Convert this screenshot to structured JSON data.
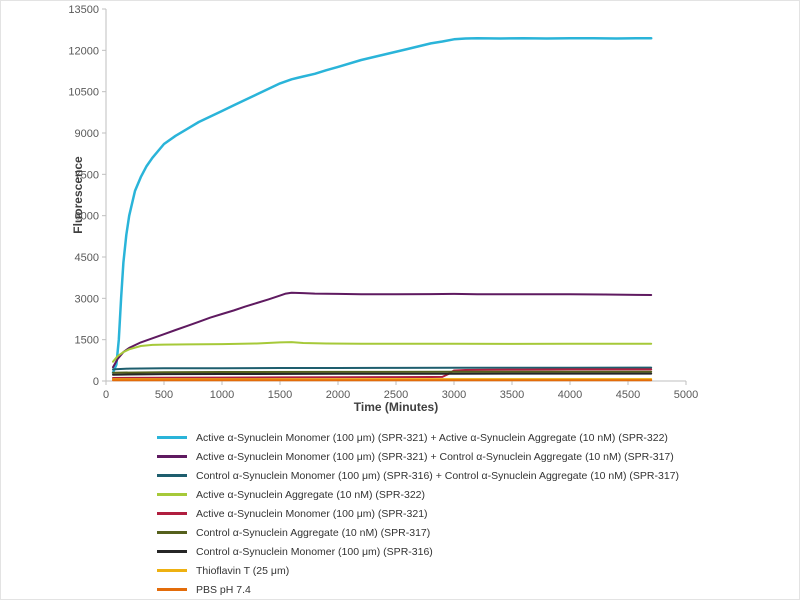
{
  "chart_data": {
    "type": "line",
    "title": "",
    "xlabel": "Time (Minutes)",
    "ylabel": "Fluorescence",
    "xlim": [
      0,
      5000
    ],
    "ylim": [
      0,
      13500
    ],
    "x_ticks": [
      0,
      500,
      1000,
      1500,
      2000,
      2500,
      3000,
      3500,
      4000,
      4500,
      5000
    ],
    "y_ticks": [
      0,
      1500,
      3000,
      4500,
      6000,
      7500,
      9000,
      10500,
      12000,
      13500
    ],
    "grid": false,
    "legend_position": "bottom-left",
    "series": [
      {
        "name": "Active α-Synuclein Monomer (100 μm) (SPR-321) + Active α-Synuclein Aggregate (10 nM) (SPR-322)",
        "color": "#2ab4d9",
        "width": 2.5,
        "x": [
          60,
          90,
          110,
          130,
          150,
          175,
          200,
          250,
          300,
          350,
          400,
          500,
          600,
          700,
          800,
          900,
          1000,
          1100,
          1200,
          1300,
          1400,
          1500,
          1600,
          1650,
          1700,
          1800,
          1900,
          2000,
          2200,
          2400,
          2600,
          2800,
          2900,
          3000,
          3100,
          3200,
          3400,
          3600,
          3800,
          4000,
          4200,
          4400,
          4600,
          4700
        ],
        "y": [
          300,
          600,
          1500,
          3000,
          4300,
          5300,
          6000,
          6900,
          7400,
          7800,
          8100,
          8600,
          8900,
          9150,
          9400,
          9600,
          9800,
          10000,
          10200,
          10400,
          10600,
          10800,
          10950,
          11000,
          11050,
          11150,
          11280,
          11400,
          11650,
          11850,
          12050,
          12250,
          12320,
          12400,
          12430,
          12440,
          12430,
          12440,
          12430,
          12440,
          12440,
          12430,
          12440,
          12440
        ]
      },
      {
        "name": "Active α-Synuclein Monomer (100 μm) (SPR-321) + Control α-Synuclein Aggregate (10 nM) (SPR-317)",
        "color": "#5f1a60",
        "width": 2,
        "x": [
          60,
          100,
          150,
          200,
          300,
          400,
          500,
          600,
          700,
          800,
          900,
          1000,
          1100,
          1200,
          1300,
          1400,
          1500,
          1550,
          1600,
          1700,
          1800,
          2000,
          2200,
          2500,
          2800,
          3000,
          3200,
          3500,
          3800,
          4000,
          4300,
          4700
        ],
        "y": [
          500,
          800,
          1050,
          1200,
          1400,
          1550,
          1700,
          1850,
          2000,
          2150,
          2300,
          2430,
          2560,
          2700,
          2830,
          2960,
          3100,
          3170,
          3200,
          3190,
          3170,
          3160,
          3150,
          3150,
          3155,
          3160,
          3150,
          3150,
          3145,
          3150,
          3140,
          3120
        ]
      },
      {
        "name": "Control α-Synuclein Monomer (100 μm) (SPR-316) + Control α-Synuclein Aggregate (10 nM) (SPR-317)",
        "color": "#1e5e6e",
        "width": 2,
        "x": [
          60,
          200,
          500,
          1000,
          1500,
          2000,
          2500,
          3000,
          3500,
          4000,
          4700
        ],
        "y": [
          420,
          450,
          460,
          465,
          470,
          470,
          475,
          480,
          480,
          480,
          485
        ]
      },
      {
        "name": "Active α-Synuclein Aggregate (10 nM) (SPR-322)",
        "color": "#a6c939",
        "width": 2,
        "x": [
          60,
          100,
          150,
          200,
          300,
          400,
          500,
          700,
          1000,
          1300,
          1500,
          1600,
          1700,
          1900,
          2200,
          2600,
          3000,
          3500,
          4000,
          4700
        ],
        "y": [
          700,
          900,
          1050,
          1150,
          1270,
          1310,
          1320,
          1330,
          1340,
          1360,
          1400,
          1410,
          1380,
          1360,
          1355,
          1350,
          1350,
          1345,
          1350,
          1350
        ]
      },
      {
        "name": "Active α-Synuclein Monomer (100 μm) (SPR-321)",
        "color": "#b01e3f",
        "width": 2,
        "x": [
          60,
          500,
          1000,
          1500,
          2000,
          2500,
          2800,
          2900,
          2950,
          3000,
          3100,
          3300,
          3600,
          4000,
          4700
        ],
        "y": [
          110,
          120,
          125,
          130,
          135,
          140,
          145,
          150,
          250,
          380,
          400,
          410,
          415,
          420,
          420
        ]
      },
      {
        "name": "Control α-Synuclein Aggregate (10 nM) (SPR-317)",
        "color": "#55601c",
        "width": 2,
        "x": [
          60,
          500,
          1000,
          2000,
          3000,
          4000,
          4700
        ],
        "y": [
          300,
          320,
          325,
          330,
          335,
          335,
          335
        ]
      },
      {
        "name": "Control α-Synuclein Monomer (100 μm) (SPR-316)",
        "color": "#262626",
        "width": 2,
        "x": [
          60,
          500,
          1000,
          2000,
          3000,
          4000,
          4700
        ],
        "y": [
          230,
          250,
          255,
          260,
          265,
          268,
          270
        ]
      },
      {
        "name": "Thioflavin T (25 μm)",
        "color": "#eeb111",
        "width": 2,
        "x": [
          60,
          1000,
          2000,
          3000,
          4700
        ],
        "y": [
          60,
          65,
          65,
          70,
          70
        ]
      },
      {
        "name": "PBS pH 7.4",
        "color": "#e36c0a",
        "width": 2,
        "x": [
          60,
          1000,
          2000,
          3000,
          4700
        ],
        "y": [
          25,
          25,
          30,
          30,
          30
        ]
      }
    ]
  },
  "colors": {
    "axis_line": "#bfbfbf",
    "tick_label": "#595959",
    "axis_title": "#404040",
    "legend_text": "#333333",
    "background": "#ffffff"
  }
}
